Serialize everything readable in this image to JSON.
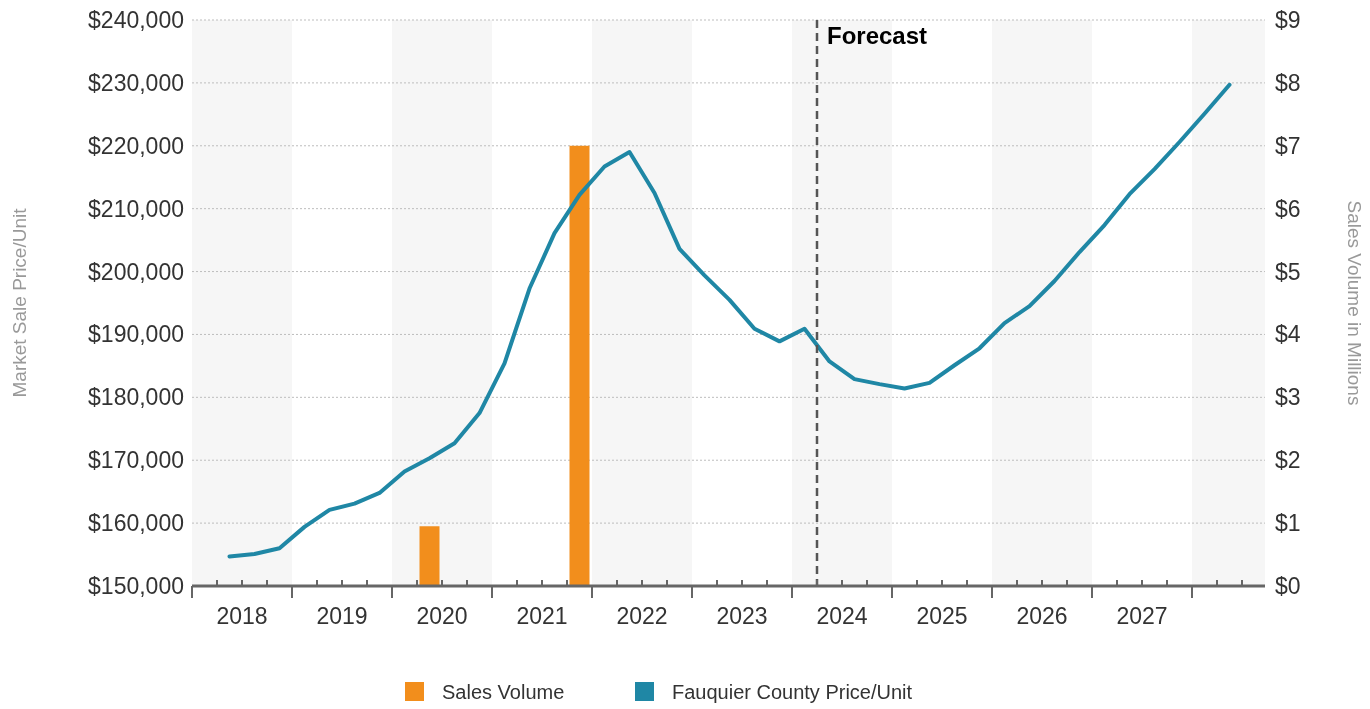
{
  "chart_data": {
    "type": "line",
    "ylabel": "Market Sale Price/Unit",
    "y2label": "Sales Volume in Millions",
    "xlim": [
      2018,
      2028.73
    ],
    "xticks": [
      {
        "value": 2018,
        "label": null
      },
      {
        "value": 2018.25,
        "label": null
      },
      {
        "value": 2018.5,
        "label": "2018"
      },
      {
        "value": 2018.75,
        "label": null
      },
      {
        "value": 2019,
        "label": null
      },
      {
        "value": 2019.25,
        "label": null
      },
      {
        "value": 2019.5,
        "label": "2019"
      },
      {
        "value": 2019.75,
        "label": null
      },
      {
        "value": 2020,
        "label": null
      },
      {
        "value": 2020.25,
        "label": null
      },
      {
        "value": 2020.5,
        "label": "2020"
      },
      {
        "value": 2020.75,
        "label": null
      },
      {
        "value": 2021,
        "label": null
      },
      {
        "value": 2021.25,
        "label": null
      },
      {
        "value": 2021.5,
        "label": "2021"
      },
      {
        "value": 2021.75,
        "label": null
      },
      {
        "value": 2022,
        "label": null
      },
      {
        "value": 2022.25,
        "label": null
      },
      {
        "value": 2022.5,
        "label": "2022"
      },
      {
        "value": 2022.75,
        "label": null
      },
      {
        "value": 2023,
        "label": null
      },
      {
        "value": 2023.25,
        "label": null
      },
      {
        "value": 2023.5,
        "label": "2023"
      },
      {
        "value": 2023.75,
        "label": null
      },
      {
        "value": 2024,
        "label": null
      },
      {
        "value": 2024.25,
        "label": null
      },
      {
        "value": 2024.5,
        "label": "2024"
      },
      {
        "value": 2024.75,
        "label": null
      },
      {
        "value": 2025,
        "label": null
      },
      {
        "value": 2025.25,
        "label": null
      },
      {
        "value": 2025.5,
        "label": "2025"
      },
      {
        "value": 2025.75,
        "label": null
      },
      {
        "value": 2026,
        "label": null
      },
      {
        "value": 2026.25,
        "label": null
      },
      {
        "value": 2026.5,
        "label": "2026"
      },
      {
        "value": 2026.75,
        "label": null
      },
      {
        "value": 2027,
        "label": null
      },
      {
        "value": 2027.25,
        "label": null
      },
      {
        "value": 2027.5,
        "label": "2027"
      },
      {
        "value": 2027.75,
        "label": null
      },
      {
        "value": 2028,
        "label": null
      },
      {
        "value": 2028.25,
        "label": null
      },
      {
        "value": 2028.5,
        "label": null
      }
    ],
    "ylim": [
      150000,
      240000
    ],
    "yticks": [
      {
        "value": 150000,
        "label": "$150,000"
      },
      {
        "value": 160000,
        "label": "$160,000"
      },
      {
        "value": 170000,
        "label": "$170,000"
      },
      {
        "value": 180000,
        "label": "$180,000"
      },
      {
        "value": 190000,
        "label": "$190,000"
      },
      {
        "value": 200000,
        "label": "$200,000"
      },
      {
        "value": 210000,
        "label": "$210,000"
      },
      {
        "value": 220000,
        "label": "$220,000"
      },
      {
        "value": 230000,
        "label": "$230,000"
      },
      {
        "value": 240000,
        "label": "$240,000"
      }
    ],
    "y2lim": [
      0,
      9
    ],
    "y2ticks": [
      {
        "value": 0,
        "label": "$0"
      },
      {
        "value": 1,
        "label": "$1"
      },
      {
        "value": 2,
        "label": "$2"
      },
      {
        "value": 3,
        "label": "$3"
      },
      {
        "value": 4,
        "label": "$4"
      },
      {
        "value": 5,
        "label": "$5"
      },
      {
        "value": 6,
        "label": "$6"
      },
      {
        "value": 7,
        "label": "$7"
      },
      {
        "value": 8,
        "label": "$8"
      },
      {
        "value": 9,
        "label": "$9"
      }
    ],
    "grid": "y",
    "legend": "bottom",
    "bands": [
      {
        "axis": "x",
        "from": 2018,
        "to": 2019,
        "color": "#f6f6f6"
      },
      {
        "axis": "x",
        "from": 2020,
        "to": 2021,
        "color": "#f6f6f6"
      },
      {
        "axis": "x",
        "from": 2022,
        "to": 2023,
        "color": "#f6f6f6"
      },
      {
        "axis": "x",
        "from": 2024,
        "to": 2025,
        "color": "#f6f6f6"
      },
      {
        "axis": "x",
        "from": 2026,
        "to": 2027,
        "color": "#f6f6f6"
      },
      {
        "axis": "x",
        "from": 2028,
        "to": 2028.73,
        "color": "#f6f6f6"
      }
    ],
    "ref_lines": [
      {
        "axis": "x",
        "value": 2024.25,
        "label": "Forecast",
        "color": "#555555",
        "line_style": "dashed"
      }
    ],
    "series": [
      {
        "type": "bar",
        "axis": "y2",
        "name": "Sales Volume",
        "color": "#f28e1c",
        "x": [
          2020.375,
          2021.875
        ],
        "values": [
          0.95,
          7.0
        ]
      },
      {
        "name": "Fauquier County Price/Unit",
        "color": "#1f87a5",
        "x": [
          2018.375,
          2018.625,
          2018.875,
          2019.125,
          2019.375,
          2019.625,
          2019.875,
          2020.125,
          2020.375,
          2020.625,
          2020.875,
          2021.125,
          2021.375,
          2021.625,
          2021.875,
          2022.125,
          2022.375,
          2022.625,
          2022.875,
          2023.125,
          2023.375,
          2023.625,
          2023.875,
          2024.125,
          2024.375,
          2024.625,
          2024.875,
          2025.125,
          2025.375,
          2025.625,
          2025.875,
          2026.125,
          2026.375,
          2026.625,
          2026.875,
          2027.125,
          2027.375,
          2027.625,
          2027.875,
          2028.125,
          2028.375
        ],
        "values": [
          154700,
          155100,
          156000,
          159400,
          162100,
          163100,
          164800,
          168200,
          170300,
          172700,
          177500,
          185400,
          197300,
          206100,
          212200,
          216700,
          219000,
          212500,
          203600,
          199400,
          195500,
          190900,
          188900,
          190900,
          185700,
          182900,
          182100,
          181400,
          182300,
          185100,
          187800,
          191800,
          194500,
          198500,
          203100,
          207400,
          212300,
          216300,
          220600,
          225100,
          229700
        ]
      }
    ]
  }
}
